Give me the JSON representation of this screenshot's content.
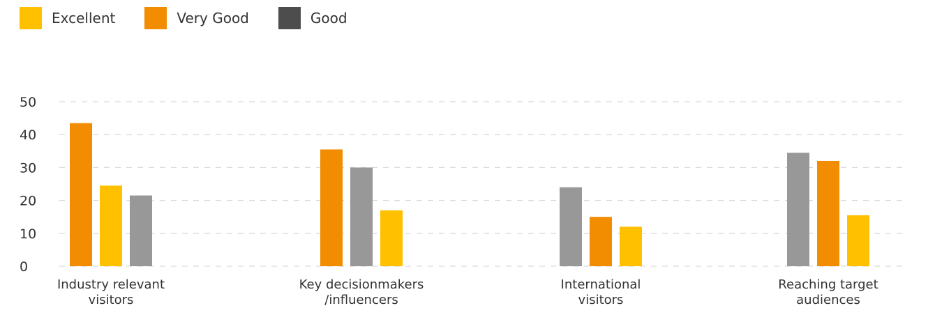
{
  "chart_data": {
    "type": "bar",
    "categories": [
      [
        "Industry relevant",
        "visitors"
      ],
      [
        "Key decisionmakers",
        "/influencers"
      ],
      [
        "International",
        "visitors"
      ],
      [
        "Reaching target",
        "audiences"
      ]
    ],
    "ylim": [
      0,
      50
    ],
    "yticks": [
      0,
      10,
      20,
      30,
      40,
      50
    ],
    "grid": true,
    "legend_position": "top-left",
    "legend": [
      {
        "label": "Excellent",
        "color": "#FFC000"
      },
      {
        "label": "Very Good",
        "color": "#F28C00"
      },
      {
        "label": "Good",
        "color": "#4D4D4D"
      }
    ],
    "bars": [
      [
        {
          "color": "#F28C00",
          "value": 43.5
        },
        {
          "color": "#FFC000",
          "value": 24.5
        },
        {
          "color": "#989898",
          "value": 21.5
        }
      ],
      [
        {
          "color": "#F28C00",
          "value": 35.5
        },
        {
          "color": "#989898",
          "value": 30
        },
        {
          "color": "#FFC000",
          "value": 17
        }
      ],
      [
        {
          "color": "#989898",
          "value": 24
        },
        {
          "color": "#F28C00",
          "value": 15
        },
        {
          "color": "#FFC000",
          "value": 12
        }
      ],
      [
        {
          "color": "#989898",
          "value": 34.5
        },
        {
          "color": "#F28C00",
          "value": 32
        },
        {
          "color": "#FFC000",
          "value": 15.5
        }
      ]
    ]
  }
}
